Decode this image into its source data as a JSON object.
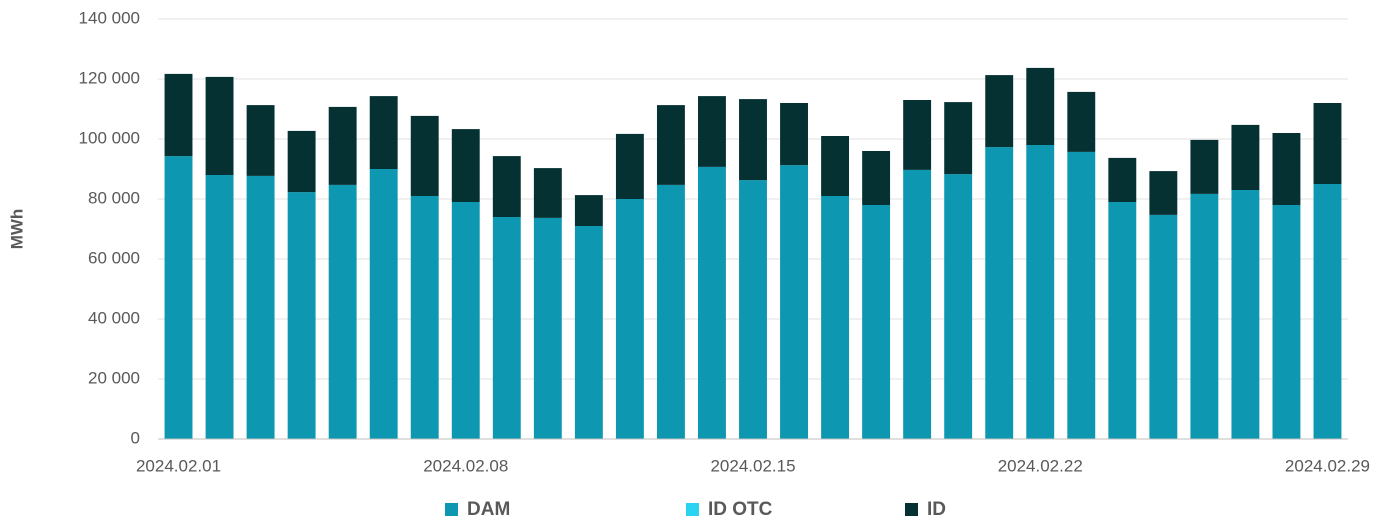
{
  "chart_data": {
    "type": "stacked_bar",
    "y_label": "MWh",
    "categories": [
      "2024.02.01",
      null,
      null,
      null,
      null,
      null,
      null,
      "2024.02.08",
      null,
      null,
      null,
      null,
      null,
      null,
      "2024.02.15",
      null,
      null,
      null,
      null,
      null,
      null,
      "2024.02.22",
      null,
      null,
      null,
      null,
      null,
      null,
      "2024.02.29"
    ],
    "series": [
      {
        "name": "DAM",
        "color": "#0e97b0",
        "values": [
          94300,
          88000,
          87700,
          82300,
          84700,
          90000,
          81000,
          79000,
          74000,
          73700,
          71000,
          80000,
          84700,
          90700,
          86300,
          91300,
          81000,
          78000,
          89700,
          88300,
          97300,
          98000,
          95700,
          79000,
          74700,
          81700,
          83000,
          78000,
          85000
        ]
      },
      {
        "name": "ID OTC",
        "color": "#2ad4f0",
        "values": [
          0,
          0,
          0,
          0,
          0,
          0,
          0,
          0,
          0,
          0,
          0,
          0,
          0,
          0,
          0,
          0,
          0,
          0,
          0,
          0,
          0,
          0,
          0,
          0,
          0,
          0,
          0,
          0,
          0
        ]
      },
      {
        "name": "ID",
        "color": "#053133",
        "values": [
          27400,
          32700,
          23600,
          20400,
          26000,
          24300,
          26700,
          24300,
          20300,
          16600,
          10300,
          21700,
          26600,
          23600,
          27000,
          20700,
          20000,
          18000,
          23300,
          24000,
          24000,
          25700,
          20000,
          14700,
          14600,
          18000,
          21700,
          24000,
          27000
        ]
      }
    ],
    "ylim": [
      0,
      140000
    ],
    "yticks": [
      0,
      {
        "value": 20000,
        "label": "20 000"
      },
      {
        "value": 40000,
        "label": "40 000"
      },
      {
        "value": 60000,
        "label": "60 000"
      },
      {
        "value": 80000,
        "label": "80 000"
      },
      {
        "value": 100000,
        "label": "100 000"
      },
      {
        "value": 120000,
        "label": "120 000"
      },
      {
        "value": 140000,
        "label": "140 000"
      }
    ],
    "grid": true,
    "legend": "bottom"
  }
}
